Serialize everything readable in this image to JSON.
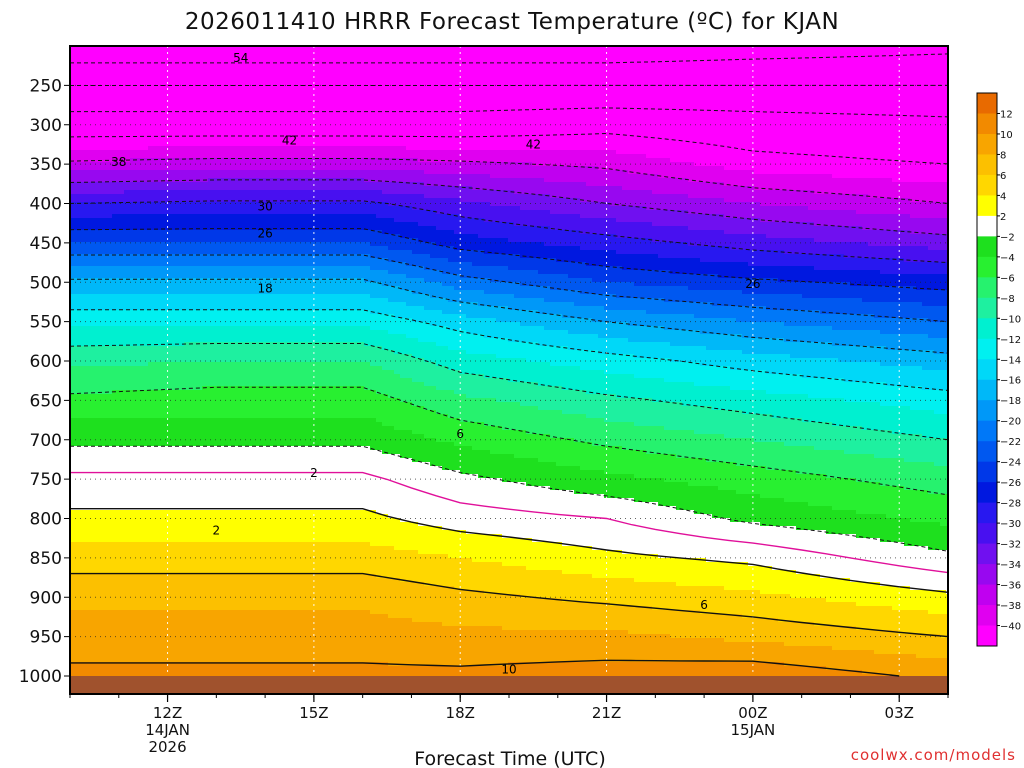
{
  "chart_data": {
    "type": "heatmap",
    "title": "2026011410 HRRR Forecast Temperature (ºC) for KJAN",
    "xlabel": "Forecast Time (UTC)",
    "ylabel": "",
    "credit": "coolwx.com/models",
    "x_hours": [
      0,
      1,
      2,
      3,
      4,
      5,
      6,
      7,
      8,
      9,
      10,
      11,
      12,
      13,
      14,
      15,
      16,
      17,
      18
    ],
    "x_ticks": [
      {
        "hour": 2,
        "lines": [
          "12Z",
          "14JAN",
          "2026"
        ]
      },
      {
        "hour": 5,
        "lines": [
          "15Z"
        ]
      },
      {
        "hour": 8,
        "lines": [
          "18Z"
        ]
      },
      {
        "hour": 11,
        "lines": [
          "21Z"
        ]
      },
      {
        "hour": 14,
        "lines": [
          "00Z",
          "15JAN"
        ]
      },
      {
        "hour": 17,
        "lines": [
          "03Z"
        ]
      }
    ],
    "y_ticks": [
      250,
      300,
      350,
      400,
      450,
      500,
      550,
      600,
      650,
      700,
      750,
      800,
      850,
      900,
      950,
      1000
    ],
    "pressure_range": [
      200,
      1013
    ],
    "colorbar": {
      "labels": [
        12,
        10,
        8,
        6,
        4,
        2,
        -2,
        -4,
        -6,
        -8,
        -10,
        -12,
        -14,
        -16,
        -18,
        -20,
        -22,
        -24,
        -26,
        -28,
        -30,
        -32,
        -34,
        -36,
        -38,
        -40
      ],
      "bins": [
        {
          "lo": 12,
          "hi": 14,
          "color": "#e86a00"
        },
        {
          "lo": 10,
          "hi": 12,
          "color": "#f28a00"
        },
        {
          "lo": 8,
          "hi": 10,
          "color": "#f8a500"
        },
        {
          "lo": 6,
          "hi": 8,
          "color": "#fcc000"
        },
        {
          "lo": 4,
          "hi": 6,
          "color": "#ffd700"
        },
        {
          "lo": 2,
          "hi": 4,
          "color": "#ffff00"
        },
        {
          "lo": -2,
          "hi": 2,
          "color": "#ffffff"
        },
        {
          "lo": -4,
          "hi": -2,
          "color": "#1ee01e"
        },
        {
          "lo": -6,
          "hi": -4,
          "color": "#28f030"
        },
        {
          "lo": -8,
          "hi": -6,
          "color": "#26f26e"
        },
        {
          "lo": -10,
          "hi": -8,
          "color": "#1ef0a0"
        },
        {
          "lo": -12,
          "hi": -10,
          "color": "#00f0d0"
        },
        {
          "lo": -14,
          "hi": -12,
          "color": "#00f0f0"
        },
        {
          "lo": -16,
          "hi": -14,
          "color": "#00d8f8"
        },
        {
          "lo": -18,
          "hi": -16,
          "color": "#00b8f8"
        },
        {
          "lo": -20,
          "hi": -18,
          "color": "#0098f8"
        },
        {
          "lo": -22,
          "hi": -20,
          "color": "#0078f8"
        },
        {
          "lo": -24,
          "hi": -22,
          "color": "#0058f0"
        },
        {
          "lo": -26,
          "hi": -24,
          "color": "#0038e8"
        },
        {
          "lo": -28,
          "hi": -26,
          "color": "#0018e0"
        },
        {
          "lo": -30,
          "hi": -28,
          "color": "#2818f0"
        },
        {
          "lo": -32,
          "hi": -30,
          "color": "#4810f0"
        },
        {
          "lo": -34,
          "hi": -32,
          "color": "#7010f0"
        },
        {
          "lo": -36,
          "hi": -34,
          "color": "#9808f0"
        },
        {
          "lo": -38,
          "hi": -36,
          "color": "#c000f0"
        },
        {
          "lo": -40,
          "hi": -38,
          "color": "#e000f0"
        },
        {
          "lo": -70,
          "hi": -40,
          "color": "#ff00ff"
        }
      ]
    },
    "ground_color": "#a0522d",
    "freezing_line_color": "#e0109a",
    "temperature_profiles": {
      "levels": [
        200,
        250,
        300,
        350,
        400,
        450,
        500,
        550,
        600,
        650,
        700,
        750,
        800,
        850,
        900,
        950,
        1000,
        1013
      ],
      "anchors": [
        {
          "hour": 0,
          "temps": [
            -57,
            -50,
            -44,
            -37.5,
            -30,
            -24,
            -17.5,
            -12.5,
            -8.5,
            -5.5,
            -2.5,
            0.5,
            2.5,
            5,
            7.5,
            9,
            10.5,
            11
          ]
        },
        {
          "hour": 3,
          "temps": [
            -57,
            -50,
            -44,
            -37,
            -29.5,
            -24,
            -17.5,
            -12.5,
            -8,
            -5,
            -2.5,
            0.5,
            2.5,
            5,
            7.5,
            9,
            10.5,
            11
          ]
        },
        {
          "hour": 6,
          "temps": [
            -57,
            -50,
            -44,
            -37,
            -29.5,
            -24,
            -17.5,
            -12.5,
            -8,
            -5,
            -2.5,
            0.5,
            2.5,
            5,
            7.5,
            9,
            10.5,
            11
          ]
        },
        {
          "hour": 8,
          "temps": [
            -57,
            -50,
            -44,
            -37.5,
            -31.5,
            -27,
            -21,
            -15,
            -11,
            -7.5,
            -4.5,
            -1.5,
            1,
            4,
            6.5,
            8.5,
            10.5,
            11
          ]
        },
        {
          "hour": 11,
          "temps": [
            -57,
            -50,
            -43,
            -38.5,
            -34,
            -29,
            -24,
            -18,
            -13,
            -9.5,
            -6.5,
            -3.5,
            0,
            2.5,
            5.5,
            8.5,
            11,
            11.5
          ]
        },
        {
          "hour": 14,
          "temps": [
            -56,
            -50,
            -44,
            -41,
            -36,
            -31,
            -25.5,
            -20,
            -15,
            -11,
            -8,
            -5,
            -2.5,
            1.5,
            4.5,
            7.5,
            11.5,
            12
          ]
        },
        {
          "hour": 18,
          "temps": [
            -55,
            -50,
            -45,
            -42,
            -38,
            -33,
            -27,
            -22,
            -17,
            -13,
            -10,
            -7,
            -4.5,
            -1.5,
            2.5,
            6,
            9.5,
            10
          ]
        }
      ]
    },
    "contour_levels": [
      -58,
      -54,
      -50,
      -46,
      -42,
      -38,
      -34,
      -30,
      -26,
      -22,
      -18,
      -14,
      -10,
      -6,
      -2,
      2,
      6,
      10
    ],
    "contour_labels": [
      {
        "text": "54",
        "hour": 3.5,
        "pressure": 215
      },
      {
        "text": "42",
        "hour": 4.5,
        "pressure": 320
      },
      {
        "text": "38",
        "hour": 1,
        "pressure": 347
      },
      {
        "text": "42",
        "hour": 9.5,
        "pressure": 325
      },
      {
        "text": "30",
        "hour": 4,
        "pressure": 404
      },
      {
        "text": "26",
        "hour": 4,
        "pressure": 438
      },
      {
        "text": "18",
        "hour": 4,
        "pressure": 508
      },
      {
        "text": "26",
        "hour": 14,
        "pressure": 502
      },
      {
        "text": "6",
        "hour": 8,
        "pressure": 693
      },
      {
        "text": "2",
        "hour": 5,
        "pressure": 742
      },
      {
        "text": "2",
        "hour": 3,
        "pressure": 815
      },
      {
        "text": "6",
        "hour": 13,
        "pressure": 910
      },
      {
        "text": "10",
        "hour": 9,
        "pressure": 992
      }
    ]
  }
}
